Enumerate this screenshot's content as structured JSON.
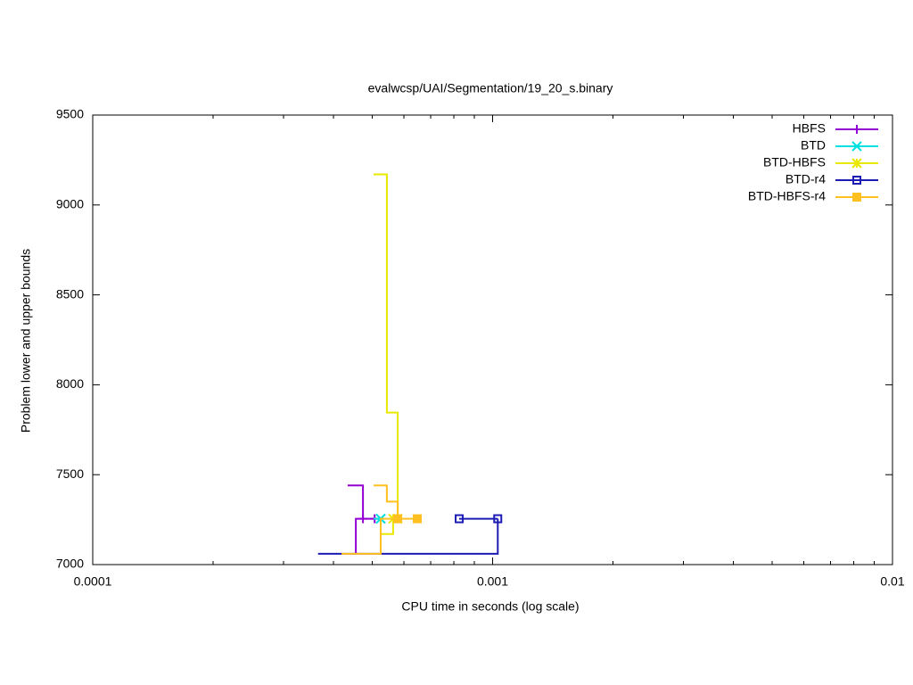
{
  "chart_data": {
    "type": "line",
    "title": "evalwcsp/UAI/Segmentation/19_20_s.binary",
    "xlabel": "CPU time in seconds (log scale)",
    "ylabel": "Problem lower and upper bounds",
    "xscale": "log",
    "xlim": [
      0.0001,
      0.01
    ],
    "xticks": [
      0.0001,
      0.001,
      0.01
    ],
    "ylim": [
      7000,
      9500
    ],
    "yticks": [
      7000,
      7500,
      8000,
      8500,
      9000,
      9500
    ],
    "legend": "top-right",
    "series": [
      {
        "name": "HBFS",
        "color": "#9400d3",
        "marker": "plus",
        "x": [
          0.000434,
          0.000474,
          0.000474,
          null,
          0.000455,
          0.000455,
          0.000507
        ],
        "values": [
          7440,
          7440,
          7255,
          null,
          7060,
          7255,
          7255
        ]
      },
      {
        "name": "BTD",
        "color": "#00e0e0",
        "marker": "cross",
        "x": [
          0.000525,
          0.000525,
          null,
          0.000504,
          0.000525
        ],
        "values": [
          7060,
          7255,
          null,
          7255,
          7255
        ]
      },
      {
        "name": "BTD-HBFS",
        "color": "#e8e800",
        "marker": "star",
        "x": [
          0.000504,
          0.000544,
          0.000544,
          0.000579,
          0.000579,
          null,
          0.000525,
          0.000564,
          0.000564
        ],
        "values": [
          9170,
          9170,
          7845,
          7845,
          7255,
          null,
          7170,
          7170,
          7255
        ]
      },
      {
        "name": "BTD-r4",
        "color": "#1c1cb4",
        "marker": "square",
        "x": [
          0.000366,
          0.00103,
          0.00103,
          null,
          0.00103,
          0.000825
        ],
        "values": [
          7060,
          7060,
          7255,
          null,
          7255,
          7255
        ]
      },
      {
        "name": "BTD-HBFS-r4",
        "color": "#ffc020",
        "marker": "filled-square",
        "x": [
          0.000504,
          0.000544,
          0.000544,
          0.000579,
          0.000579,
          null,
          0.000419,
          0.000525,
          0.000525,
          0.000648
        ],
        "values": [
          7440,
          7440,
          7350,
          7350,
          7255,
          null,
          7060,
          7060,
          7255,
          7255
        ]
      }
    ]
  }
}
